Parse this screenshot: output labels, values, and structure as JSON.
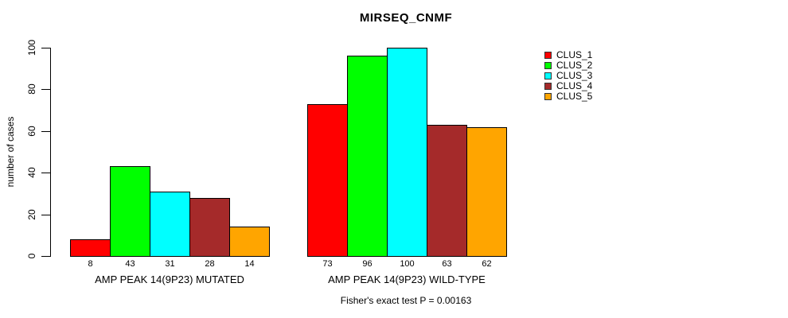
{
  "chart_data": {
    "type": "bar",
    "title": "MIRSEQ_CNMF",
    "ylabel": "number of cases",
    "xlabel": "",
    "ylim": [
      0,
      100
    ],
    "yticks": [
      "0",
      "20",
      "40",
      "60",
      "80",
      "100"
    ],
    "grid": false,
    "legend_position": "right",
    "bar_border_color": "#000000",
    "series": [
      {
        "name": "CLUS_1",
        "color": "#FF0000"
      },
      {
        "name": "CLUS_2",
        "color": "#00FF00"
      },
      {
        "name": "CLUS_3",
        "color": "#00FFFF"
      },
      {
        "name": "CLUS_4",
        "color": "#A52A2A"
      },
      {
        "name": "CLUS_5",
        "color": "#FFA500"
      }
    ],
    "groups": [
      {
        "label": "AMP PEAK 14(9P23) MUTATED",
        "values": [
          8,
          43,
          31,
          28,
          14
        ],
        "value_labels": [
          "8",
          "43",
          "31",
          "28",
          "14"
        ]
      },
      {
        "label": "AMP PEAK 14(9P23) WILD-TYPE",
        "values": [
          73,
          96,
          100,
          63,
          62
        ],
        "value_labels": [
          "73",
          "96",
          "100",
          "63",
          "62"
        ]
      }
    ],
    "annotation": "Fisher's exact test P = 0.00163"
  }
}
